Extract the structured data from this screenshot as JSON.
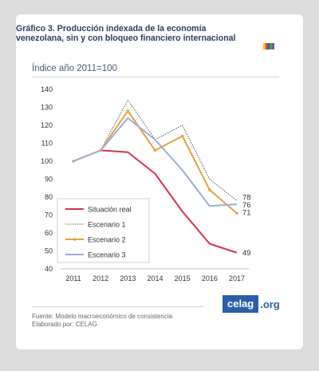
{
  "title": "Gráfico 3. Producción indexada de la economía venezolana, sin y con bloqueo financiero internacional",
  "subtitle": "Índice año 2011=100",
  "flag_colors": [
    "#f4c11d",
    "#e8402a",
    "#2a5fb8",
    "#39a845",
    "#7d4fb0"
  ],
  "footer": {
    "source": "Fuente: Modelo macroeconómico de consistencia",
    "author": "Elaborado por: CELAG",
    "logo_main": "celag",
    "logo_ext": ".org",
    "logo_color": "#2b5fa8"
  },
  "chart_data": {
    "type": "line",
    "title": "",
    "xlabel": "",
    "ylabel": "",
    "x": [
      "2011",
      "2012",
      "2013",
      "2014",
      "2015",
      "2016",
      "2017"
    ],
    "ylim": [
      40,
      140
    ],
    "yticks": [
      40,
      50,
      60,
      70,
      80,
      90,
      100,
      110,
      120,
      130,
      140
    ],
    "grid": false,
    "legend_position": "bottom-left",
    "series": [
      {
        "name": "Situación real",
        "values": [
          100,
          106,
          105,
          93,
          72,
          54,
          49
        ],
        "color": "#d8324f",
        "style": "solid",
        "markers": false,
        "end_label": "49"
      },
      {
        "name": "Escenario 1",
        "values": [
          100,
          106,
          134,
          112,
          120,
          90,
          78
        ],
        "color": "#555555",
        "style": "dotted",
        "markers": false,
        "end_label": "78"
      },
      {
        "name": "Escenario 2",
        "values": [
          100,
          106,
          128,
          106,
          114,
          84,
          71
        ],
        "color": "#e6a33e",
        "style": "solid",
        "markers": true,
        "end_label": "71"
      },
      {
        "name": "Escenario 3",
        "values": [
          100,
          106,
          124,
          112,
          95,
          75,
          76
        ],
        "color": "#9aaed3",
        "style": "solid",
        "markers": false,
        "end_label": "76"
      }
    ]
  }
}
